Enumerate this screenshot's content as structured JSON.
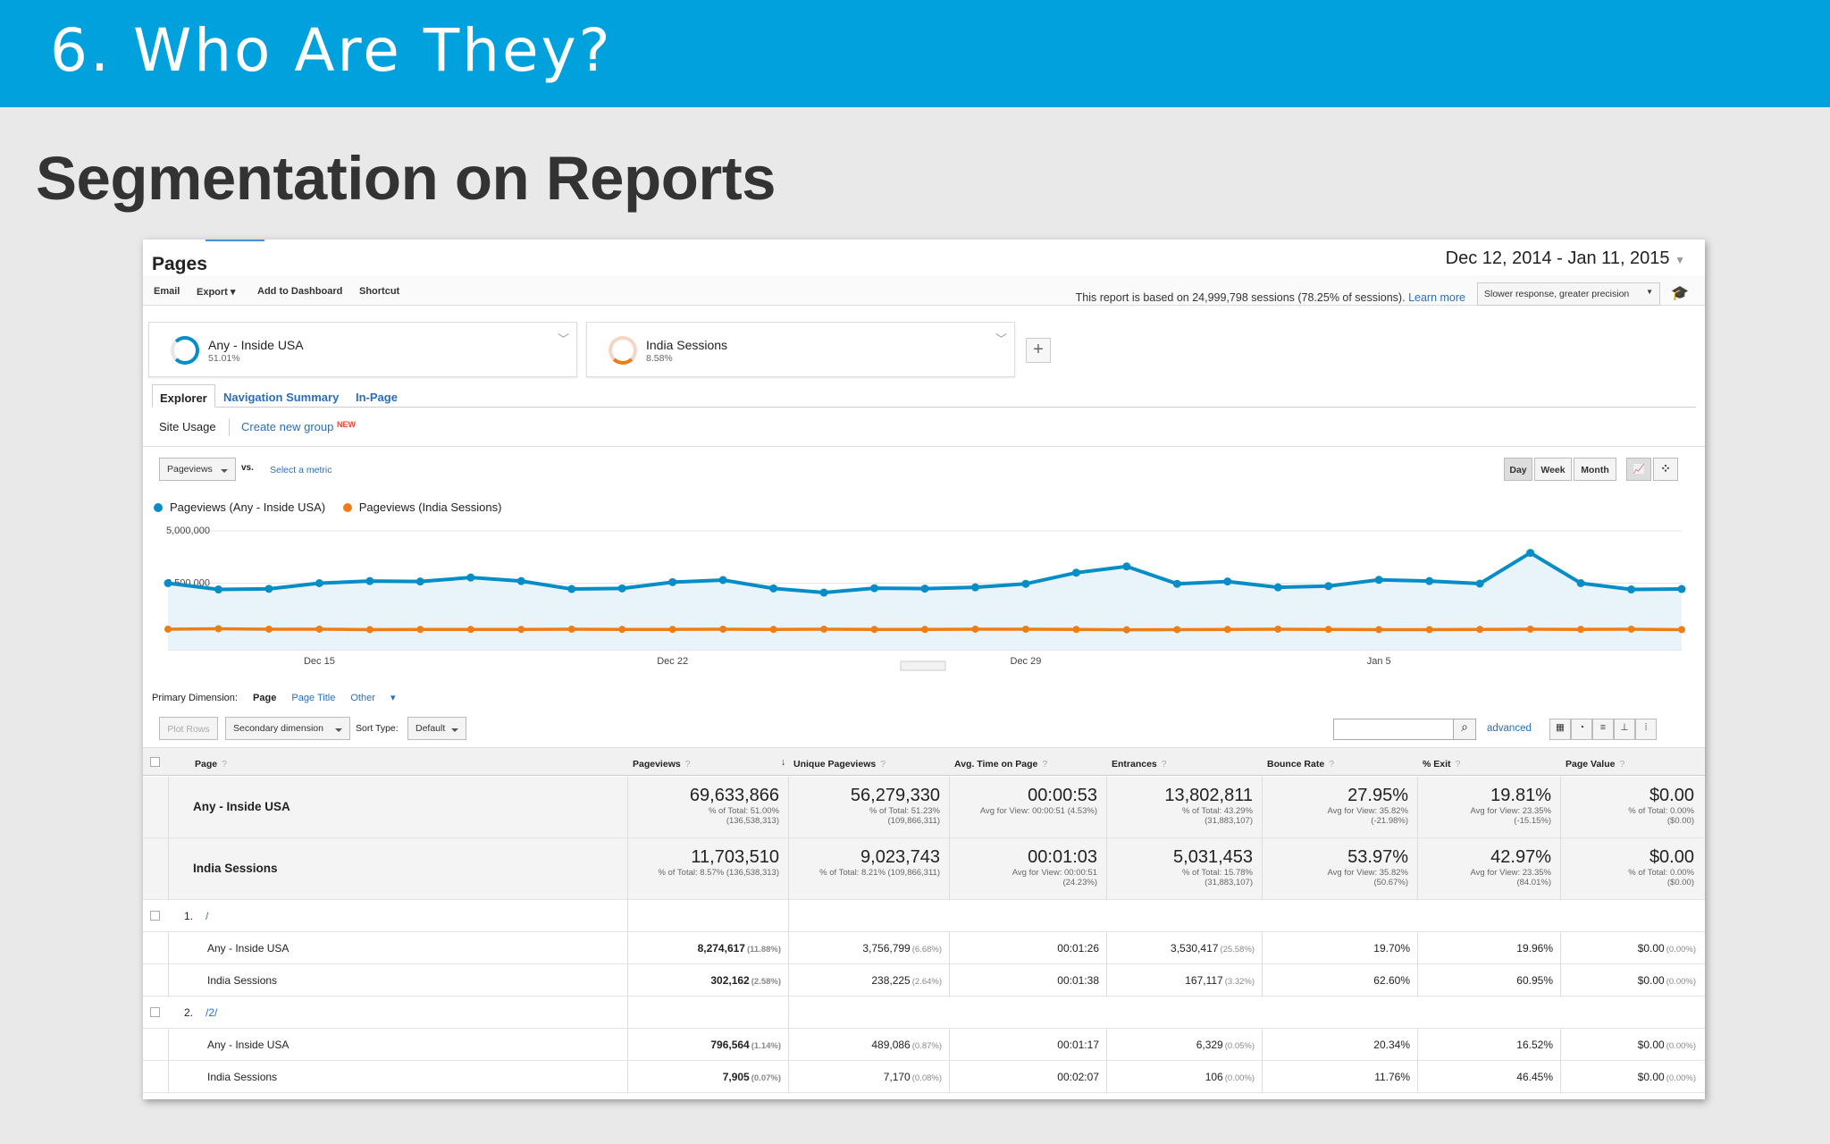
{
  "slide": {
    "banner_title": "6. Who Are They?",
    "subtitle": "Segmentation on Reports"
  },
  "report": {
    "title": "Pages",
    "date_range": "Dec 12, 2014 - Jan 11, 2015",
    "toolbar": {
      "email": "Email",
      "export": "Export",
      "add_dashboard": "Add to Dashboard",
      "shortcut": "Shortcut"
    },
    "sampling_text": "This report is based on 24,999,798 sessions (78.25% of sessions).",
    "learn_more": "Learn more",
    "precision_select": "Slower response, greater precision",
    "segments": [
      {
        "name": "Any - Inside USA",
        "pct": "51.01%",
        "color": "#058dc7"
      },
      {
        "name": "India Sessions",
        "pct": "8.58%",
        "color": "#ed7e17"
      }
    ],
    "tabs": [
      "Explorer",
      "Navigation Summary",
      "In-Page"
    ],
    "subtabs": {
      "site_usage": "Site Usage",
      "create_group": "Create new group",
      "new_badge": "NEW"
    },
    "metric_select": "Pageviews",
    "vs": "vs.",
    "select_metric": "Select a metric",
    "time_buttons": [
      "Day",
      "Week",
      "Month"
    ],
    "primary_dimension": {
      "label": "Primary Dimension:",
      "page": "Page",
      "page_title": "Page Title",
      "other": "Other"
    },
    "plot_rows": "Plot Rows",
    "secondary_dimension": "Secondary dimension",
    "sort_type_label": "Sort Type:",
    "sort_type": "Default",
    "advanced": "advanced"
  },
  "chart_data": {
    "type": "line",
    "legend": [
      "Pageviews (Any - Inside USA)",
      "Pageviews (India Sessions)"
    ],
    "y_ticks": [
      "5,000,000",
      "2,500,000"
    ],
    "ylim": [
      0,
      5000000
    ],
    "x_tick_labels": [
      "Dec 15",
      "Dec 22",
      "Dec 29",
      "Jan 5"
    ],
    "x": [
      "Dec 12",
      "Dec 13",
      "Dec 14",
      "Dec 15",
      "Dec 16",
      "Dec 17",
      "Dec 18",
      "Dec 19",
      "Dec 20",
      "Dec 21",
      "Dec 22",
      "Dec 23",
      "Dec 24",
      "Dec 25",
      "Dec 26",
      "Dec 27",
      "Dec 28",
      "Dec 29",
      "Dec 30",
      "Dec 31",
      "Jan 1",
      "Jan 2",
      "Jan 3",
      "Jan 4",
      "Jan 5",
      "Jan 6",
      "Jan 7",
      "Jan 8",
      "Jan 9",
      "Jan 10",
      "Jan 11"
    ],
    "series": [
      {
        "name": "Pageviews (Any - Inside USA)",
        "color": "#058dc7",
        "values": [
          2500000,
          2200000,
          2230000,
          2500000,
          2600000,
          2580000,
          2770000,
          2600000,
          2220000,
          2250000,
          2550000,
          2650000,
          2250000,
          2050000,
          2260000,
          2240000,
          2300000,
          2470000,
          3000000,
          3300000,
          2470000,
          2580000,
          2300000,
          2360000,
          2660000,
          2600000,
          2480000,
          3950000,
          2500000,
          2200000,
          2220000
        ]
      },
      {
        "name": "Pageviews (India Sessions)",
        "color": "#ed7e17",
        "values": [
          300000,
          320000,
          300000,
          300000,
          280000,
          290000,
          290000,
          290000,
          300000,
          290000,
          290000,
          300000,
          290000,
          300000,
          290000,
          290000,
          300000,
          300000,
          290000,
          270000,
          280000,
          290000,
          300000,
          290000,
          280000,
          280000,
          290000,
          300000,
          290000,
          300000,
          280000
        ]
      }
    ]
  },
  "table": {
    "headers": [
      "Page",
      "Pageviews",
      "Unique Pageviews",
      "Avg. Time on Page",
      "Entrances",
      "Bounce Rate",
      "% Exit",
      "Page Value"
    ],
    "totals": [
      {
        "label": "Any - Inside USA",
        "values": [
          {
            "main": "69,633,866",
            "sub1": "% of Total: 51.00%",
            "sub2": "(136,538,313)"
          },
          {
            "main": "56,279,330",
            "sub1": "% of Total: 51.23%",
            "sub2": "(109,866,311)"
          },
          {
            "main": "00:00:53",
            "sub1": "Avg for View: 00:00:51 (4.53%)",
            "sub2": ""
          },
          {
            "main": "13,802,811",
            "sub1": "% of Total: 43.29%",
            "sub2": "(31,883,107)"
          },
          {
            "main": "27.95%",
            "sub1": "Avg for View: 35.82%",
            "sub2": "(-21.98%)"
          },
          {
            "main": "19.81%",
            "sub1": "Avg for View: 23.35%",
            "sub2": "(-15.15%)"
          },
          {
            "main": "$0.00",
            "sub1": "% of Total: 0.00%",
            "sub2": "($0.00)"
          }
        ]
      },
      {
        "label": "India Sessions",
        "values": [
          {
            "main": "11,703,510",
            "sub1": "% of Total: 8.57% (136,538,313)",
            "sub2": ""
          },
          {
            "main": "9,023,743",
            "sub1": "% of Total: 8.21% (109,866,311)",
            "sub2": ""
          },
          {
            "main": "00:01:03",
            "sub1": "Avg for View: 00:00:51",
            "sub2": "(24.23%)"
          },
          {
            "main": "5,031,453",
            "sub1": "% of Total: 15.78%",
            "sub2": "(31,883,107)"
          },
          {
            "main": "53.97%",
            "sub1": "Avg for View: 35.82%",
            "sub2": "(50.67%)"
          },
          {
            "main": "42.97%",
            "sub1": "Avg for View: 23.35%",
            "sub2": "(84.01%)"
          },
          {
            "main": "$0.00",
            "sub1": "% of Total: 0.00%",
            "sub2": "($0.00)"
          }
        ]
      }
    ],
    "groups": [
      {
        "index": "1.",
        "page": "/",
        "rows": [
          {
            "label": "Any - Inside USA",
            "cells": [
              [
                "8,274,617",
                "(11.88%)"
              ],
              [
                "3,756,799",
                "(6.68%)"
              ],
              [
                "00:01:26",
                ""
              ],
              [
                "3,530,417",
                "(25.58%)"
              ],
              [
                "19.70%",
                ""
              ],
              [
                "19.96%",
                ""
              ],
              [
                "$0.00",
                "(0.00%)"
              ]
            ]
          },
          {
            "label": "India Sessions",
            "cells": [
              [
                "302,162",
                "(2.58%)"
              ],
              [
                "238,225",
                "(2.64%)"
              ],
              [
                "00:01:38",
                ""
              ],
              [
                "167,117",
                "(3.32%)"
              ],
              [
                "62.60%",
                ""
              ],
              [
                "60.95%",
                ""
              ],
              [
                "$0.00",
                "(0.00%)"
              ]
            ]
          }
        ]
      },
      {
        "index": "2.",
        "page": "/2/",
        "rows": [
          {
            "label": "Any - Inside USA",
            "cells": [
              [
                "796,564",
                "(1.14%)"
              ],
              [
                "489,086",
                "(0.87%)"
              ],
              [
                "00:01:17",
                ""
              ],
              [
                "6,329",
                "(0.05%)"
              ],
              [
                "20.34%",
                ""
              ],
              [
                "16.52%",
                ""
              ],
              [
                "$0.00",
                "(0.00%)"
              ]
            ]
          },
          {
            "label": "India Sessions",
            "cells": [
              [
                "7,905",
                "(0.07%)"
              ],
              [
                "7,170",
                "(0.08%)"
              ],
              [
                "00:02:07",
                ""
              ],
              [
                "106",
                "(0.00%)"
              ],
              [
                "11.76%",
                ""
              ],
              [
                "46.45%",
                ""
              ],
              [
                "$0.00",
                "(0.00%)"
              ]
            ]
          }
        ]
      }
    ]
  }
}
